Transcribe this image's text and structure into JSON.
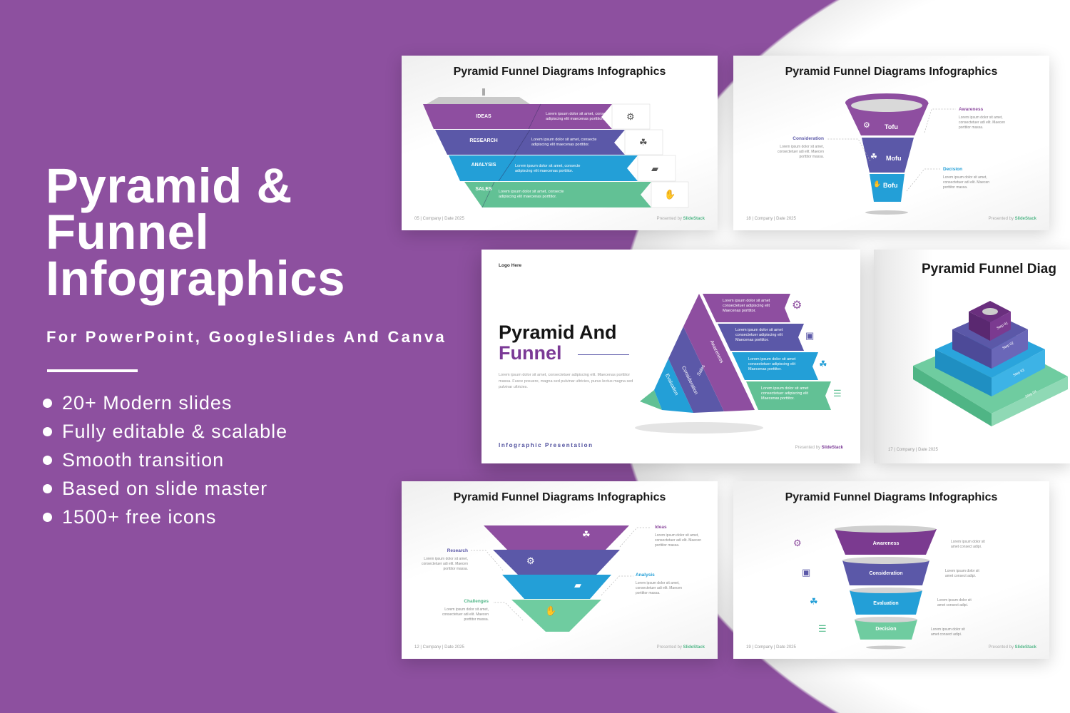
{
  "hero": {
    "title_lines": [
      "Pyramid &",
      "Funnel",
      "Infographics"
    ],
    "subtitle": "For PowerPoint, GoogleSlides And Canva",
    "bullets": [
      "20+ Modern  slides",
      "Fully editable & scalable",
      "Smooth transition",
      "Based on slide master",
      "1500+ free icons"
    ]
  },
  "colors": {
    "background": "#8d509f",
    "purple": "#8e4ea0",
    "indigo": "#5b58a8",
    "blue": "#239fd7",
    "green": "#62c195"
  },
  "lorem_short": "Lorem ipsum dolor sit amet, consecte adipiscing elit maecenas porttitor.",
  "lorem_mid": "Lorem ipsum dolor sit amet, consectetuer adi elit. Maecen porttitor massa.",
  "lorem_tiny": "Lorem ipsum dolor sit amet consect adipi.",
  "lorem_rib": "Lorem ipsum dolor sit amet consectetuer adipiscing elit Maecenas porttitor.",
  "presented": {
    "prefix": "Presented by",
    "brand": "SlideStack"
  },
  "slide1": {
    "title": "Pyramid Funnel Diagrams Infographics",
    "labels": [
      "IDEAS",
      "RESEARCH",
      "ANALYSIS",
      "SALES"
    ],
    "icons": [
      "gear-icon",
      "people-icon",
      "folder-icon",
      "handshake-icon"
    ],
    "footer": "05 | Company  | Date 2025"
  },
  "slide2": {
    "title": "Pyramid Funnel Diagrams Infographics",
    "stages": [
      "Tofu",
      "Mofu",
      "Bofu"
    ],
    "notes": [
      "Awareness",
      "Consideration",
      "Decision"
    ],
    "footer": "18 | Company  | Date 2025"
  },
  "slide3": {
    "logo": "Logo Here",
    "title_line1": "Pyramid And",
    "title_line2": "Funnel",
    "body": "Lorem ipsum dolor sit amet, consectetuer adipiscing elit. Maecenas porttitor  massa. Fusce posuere, magna sed pulvinar ultricies, purus lectus magna sed pulvinar ultricies.",
    "strips": [
      "Sales",
      "Evaluation",
      "Consideration",
      "Awareness"
    ],
    "footer": "Infographic Presentation"
  },
  "slide4": {
    "title": "Pyramid Funnel Diag",
    "steps": [
      "Step 01",
      "Step 02",
      "Step 03",
      "Step 04"
    ],
    "footer": "17 | Company  | Date 2025"
  },
  "slide5": {
    "title": "Pyramid Funnel Diagrams Infographics",
    "notes": [
      "Ideas",
      "Research",
      "Analysis",
      "Challenges"
    ],
    "footer": "12 | Company  | Date 2025"
  },
  "slide6": {
    "title": "Pyramid Funnel Diagrams Infographics",
    "stages": [
      "Awareness",
      "Consideration",
      "Evaluation",
      "Decision"
    ],
    "footer": "19 | Company  | Date 2025"
  }
}
